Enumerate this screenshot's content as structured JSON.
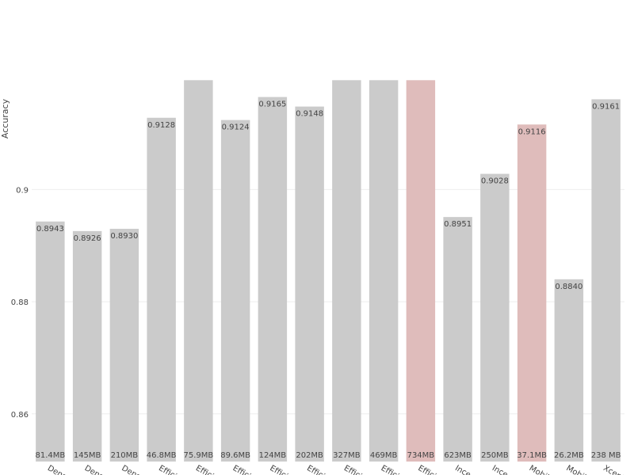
{
  "chart_data": {
    "type": "bar",
    "ylabel": "Accuracy",
    "ylim": [
      0.8515,
      0.9338
    ],
    "yticks": [
      0.86,
      0.88,
      0.9
    ],
    "ytick_labels": [
      "0.86",
      "0.88",
      "0.9"
    ],
    "grid": true,
    "categories": [
      "Dens",
      "Dens",
      "Dens",
      "Effici",
      "Effici",
      "Effici",
      "Effici",
      "Effici",
      "Effici",
      "Effici",
      "Effici",
      "Ince",
      "Ince",
      "Mobil",
      "Mobil",
      "Xcept"
    ],
    "values": [
      0.8943,
      0.8926,
      0.893,
      0.9128,
      0.9195,
      0.9124,
      0.9165,
      0.9148,
      0.9195,
      0.9195,
      0.9195,
      0.8951,
      0.9028,
      0.9116,
      0.884,
      0.9161
    ],
    "value_labels": [
      "0.8943",
      "0.8926",
      "0.8930",
      "0.9128",
      "",
      "0.9124",
      "0.9165",
      "0.9148",
      "",
      "",
      "",
      "0.8951",
      "0.9028",
      "0.9116",
      "0.8840",
      "0.9161"
    ],
    "size_labels": [
      "81.4MB",
      "145MB",
      "210MB",
      "46.8MB",
      "75.9MB",
      "89.6MB",
      "124MB",
      "202MB",
      "327MB",
      "469MB",
      "734MB",
      "623MB",
      "250MB",
      "37.1MB",
      "26.2MB",
      "238 MB"
    ],
    "highlighted": [
      false,
      false,
      false,
      false,
      false,
      false,
      false,
      false,
      false,
      false,
      true,
      false,
      false,
      true,
      false,
      false
    ],
    "colors": {
      "bar": "#cbcbcb",
      "highlight": "#dfbcbb",
      "text": "#444444",
      "grid": "#eeeeee"
    }
  }
}
